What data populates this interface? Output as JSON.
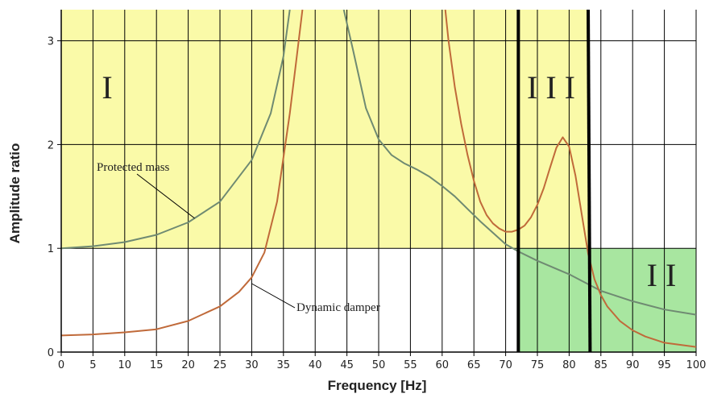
{
  "chart_data": {
    "type": "line",
    "title": "",
    "xlabel": "Frequency [Hz]",
    "ylabel": "Amplitude ratio",
    "xlim": [
      0,
      100
    ],
    "ylim": [
      0,
      3.3
    ],
    "x_ticks": [
      "0",
      "5",
      "10",
      "15",
      "20",
      "25",
      "30",
      "35",
      "40",
      "45",
      "50",
      "55",
      "60",
      "65",
      "70",
      "75",
      "80",
      "85",
      "90",
      "95",
      "100"
    ],
    "y_ticks": [
      "0",
      "1",
      "2",
      "3"
    ],
    "grid": true,
    "colors": {
      "protected_mass": "#6f8a72",
      "dynamic_damper": "#c06a3a",
      "region_I": "#fafaa8",
      "region_II": "#a8e6a0",
      "boundary": "#000000"
    },
    "regions": [
      {
        "label": "I",
        "x_range": [
          0,
          72
        ],
        "y_range": [
          1,
          3.3
        ]
      },
      {
        "label": "II",
        "x_range": [
          72,
          100
        ],
        "y_range": [
          0,
          1
        ]
      },
      {
        "label": "III",
        "x_range": [
          72,
          83
        ],
        "y_range": [
          1,
          3.3
        ]
      }
    ],
    "boundaries": [
      {
        "x_top": 72,
        "x_bottom": 72
      },
      {
        "x_top": 83,
        "x_bottom": 83.3
      }
    ],
    "annotations": [
      {
        "text": "Protected mass",
        "points_to": [
          21,
          1.29
        ]
      },
      {
        "text": "Dynamic damper",
        "points_to": [
          30,
          0.66
        ]
      }
    ],
    "series": [
      {
        "x": [
          0,
          5,
          10,
          15,
          20,
          25,
          30,
          33,
          35,
          36
        ],
        "y": [
          1.0,
          1.02,
          1.06,
          1.13,
          1.25,
          1.45,
          1.85,
          2.3,
          2.85,
          3.3
        ]
      },
      {
        "x": [
          44.5,
          46,
          48,
          50,
          52,
          54,
          56,
          58,
          60,
          62,
          64,
          66,
          68,
          70,
          72,
          75,
          80,
          85,
          90,
          95,
          100
        ],
        "y": [
          3.3,
          2.9,
          2.35,
          2.05,
          1.9,
          1.82,
          1.76,
          1.69,
          1.6,
          1.5,
          1.38,
          1.26,
          1.15,
          1.04,
          0.97,
          0.88,
          0.75,
          0.59,
          0.49,
          0.41,
          0.36
        ]
      },
      {
        "x": [
          0,
          5,
          10,
          15,
          20,
          25,
          28,
          30,
          32,
          34,
          36,
          37,
          38
        ],
        "y": [
          0.16,
          0.17,
          0.19,
          0.22,
          0.3,
          0.44,
          0.58,
          0.72,
          0.96,
          1.45,
          2.3,
          2.8,
          3.3
        ]
      },
      {
        "x": [
          60.5,
          61,
          62,
          63,
          64,
          65,
          66,
          67,
          68,
          69,
          70,
          71,
          72,
          73,
          74,
          75,
          76,
          77,
          78,
          79,
          80,
          81,
          82,
          83,
          84,
          85,
          86,
          88,
          90,
          92,
          95,
          100
        ],
        "y": [
          3.3,
          3.0,
          2.55,
          2.2,
          1.9,
          1.65,
          1.45,
          1.32,
          1.24,
          1.19,
          1.16,
          1.16,
          1.18,
          1.22,
          1.3,
          1.42,
          1.58,
          1.78,
          1.97,
          2.07,
          1.98,
          1.7,
          1.32,
          0.95,
          0.7,
          0.55,
          0.44,
          0.3,
          0.21,
          0.15,
          0.09,
          0.05
        ]
      }
    ]
  }
}
